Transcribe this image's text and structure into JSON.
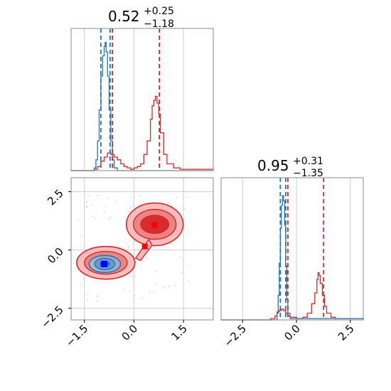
{
  "colors": {
    "red": "#d62728",
    "blue": "#1f77b4",
    "grid": "#cccccc",
    "frame": "#888888"
  },
  "chart_data": {
    "type": "corner",
    "titles": [
      {
        "value": "0.52",
        "plus": "+0.25",
        "minus": "−1.18"
      },
      {
        "value": "0.95",
        "plus": "+0.31",
        "minus": "−1.35"
      }
    ],
    "x_range": [
      -1.9,
      2.4
    ],
    "y_range": [
      -3.0,
      3.1
    ],
    "hist2_x_range": [
      -3.5,
      3.1
    ],
    "xticks": [
      {
        "v": -1.5,
        "label": "−1.5"
      },
      {
        "v": 0.0,
        "label": "0.0"
      },
      {
        "v": 1.5,
        "label": "1.5"
      }
    ],
    "yticks": [
      {
        "v": 2.5,
        "label": "2.5"
      },
      {
        "v": 0.0,
        "label": "0.0"
      },
      {
        "v": -2.5,
        "label": "−2.5"
      }
    ],
    "hist2_xticks": [
      {
        "v": -2.5,
        "label": "−2.5"
      },
      {
        "v": 0.0,
        "label": "0.0"
      },
      {
        "v": 2.5,
        "label": "2.5"
      }
    ],
    "hist1": {
      "red": [
        [
          -1.9,
          0
        ],
        [
          -1.4,
          0
        ],
        [
          -1.2,
          0.01
        ],
        [
          -1.1,
          0.03
        ],
        [
          -1.0,
          0.07
        ],
        [
          -0.9,
          0.1
        ],
        [
          -0.8,
          0.13
        ],
        [
          -0.7,
          0.12
        ],
        [
          -0.6,
          0.1
        ],
        [
          -0.5,
          0.08
        ],
        [
          -0.4,
          0.05
        ],
        [
          -0.3,
          0.03
        ],
        [
          -0.2,
          0.02
        ],
        [
          -0.1,
          0.01
        ],
        [
          0.0,
          0.02
        ],
        [
          0.1,
          0.03
        ],
        [
          0.2,
          0.05
        ],
        [
          0.3,
          0.12
        ],
        [
          0.4,
          0.22
        ],
        [
          0.5,
          0.38
        ],
        [
          0.55,
          0.48
        ],
        [
          0.6,
          0.52
        ],
        [
          0.65,
          0.55
        ],
        [
          0.7,
          0.5
        ],
        [
          0.75,
          0.42
        ],
        [
          0.8,
          0.28
        ],
        [
          0.9,
          0.12
        ],
        [
          1.0,
          0.05
        ],
        [
          1.2,
          0.02
        ],
        [
          1.4,
          0.01
        ],
        [
          1.6,
          0.01
        ],
        [
          2.4,
          0
        ]
      ],
      "blue": [
        [
          -1.9,
          0
        ],
        [
          -1.3,
          0
        ],
        [
          -1.2,
          0.02
        ],
        [
          -1.15,
          0.08
        ],
        [
          -1.1,
          0.22
        ],
        [
          -1.05,
          0.45
        ],
        [
          -1.0,
          0.7
        ],
        [
          -0.95,
          0.85
        ],
        [
          -0.9,
          0.92
        ],
        [
          -0.87,
          0.95
        ],
        [
          -0.84,
          0.88
        ],
        [
          -0.8,
          0.7
        ],
        [
          -0.75,
          0.45
        ],
        [
          -0.7,
          0.22
        ],
        [
          -0.65,
          0.08
        ],
        [
          -0.6,
          0.02
        ],
        [
          -0.5,
          0
        ],
        [
          2.4,
          0
        ]
      ],
      "red_lines": [
        -0.65,
        0.77
      ],
      "blue_lines": [
        -1.0,
        -0.72
      ]
    },
    "hist2": {
      "red": [
        [
          -3.5,
          0
        ],
        [
          -1.4,
          0
        ],
        [
          -1.2,
          0.01
        ],
        [
          -1.0,
          0.03
        ],
        [
          -0.9,
          0.06
        ],
        [
          -0.8,
          0.07
        ],
        [
          -0.7,
          0.08
        ],
        [
          -0.6,
          0.07
        ],
        [
          -0.5,
          0.05
        ],
        [
          -0.4,
          0.03
        ],
        [
          -0.3,
          0.02
        ],
        [
          0.0,
          0.01
        ],
        [
          0.3,
          0.02
        ],
        [
          0.5,
          0.05
        ],
        [
          0.7,
          0.12
        ],
        [
          0.85,
          0.2
        ],
        [
          0.95,
          0.3
        ],
        [
          1.0,
          0.35
        ],
        [
          1.05,
          0.33
        ],
        [
          1.1,
          0.27
        ],
        [
          1.2,
          0.18
        ],
        [
          1.3,
          0.1
        ],
        [
          1.4,
          0.05
        ],
        [
          1.6,
          0.02
        ],
        [
          1.8,
          0.01
        ],
        [
          3.1,
          0
        ]
      ],
      "blue": [
        [
          -3.5,
          0
        ],
        [
          -1.0,
          0
        ],
        [
          -0.9,
          0.05
        ],
        [
          -0.85,
          0.18
        ],
        [
          -0.8,
          0.42
        ],
        [
          -0.75,
          0.68
        ],
        [
          -0.7,
          0.85
        ],
        [
          -0.65,
          0.92
        ],
        [
          -0.6,
          0.88
        ],
        [
          -0.55,
          0.7
        ],
        [
          -0.5,
          0.4
        ],
        [
          -0.45,
          0.15
        ],
        [
          -0.4,
          0.05
        ],
        [
          -0.3,
          0.01
        ],
        [
          3.1,
          0
        ]
      ],
      "red_lines": [
        -0.4,
        1.26
      ],
      "blue_lines": [
        -0.75,
        -0.5
      ]
    },
    "scatter_red_markers": [
      [
        0.63,
        1.08
      ],
      [
        0.33,
        0.15
      ]
    ],
    "scatter_blue_markers": [
      [
        -0.9,
        -0.6
      ]
    ]
  }
}
